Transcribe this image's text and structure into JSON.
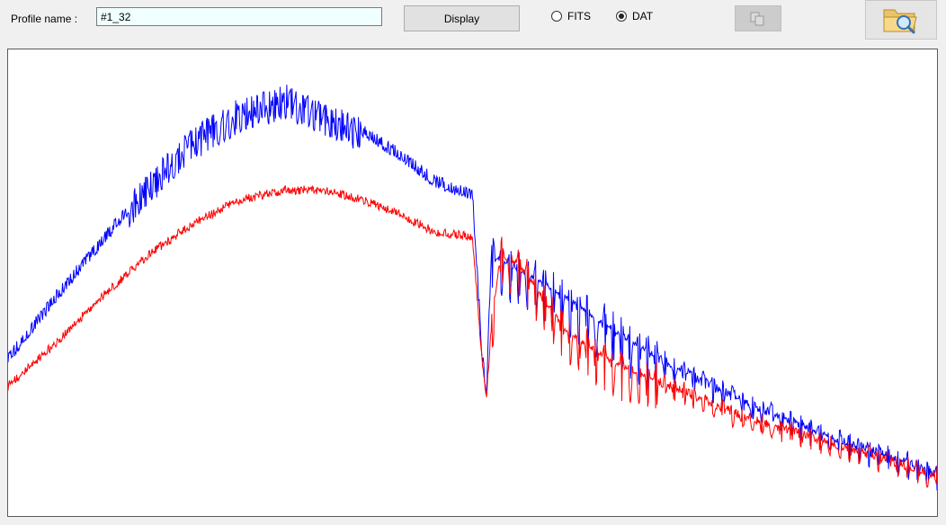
{
  "toolbar": {
    "profile_label": "Profile name :",
    "profile_value": "#1_32",
    "display_label": "Display",
    "format_options": [
      {
        "label": "FITS",
        "selected": false
      },
      {
        "label": "DAT",
        "selected": true
      }
    ],
    "copy_icon": "copy-icon",
    "open_icon": "open-folder-search-icon"
  },
  "colors": {
    "series_observed": "#0000ff",
    "series_reference": "#ff0000",
    "input_bg": "#f0ffff"
  },
  "chart_data": {
    "type": "line",
    "title": "",
    "xlabel": "",
    "ylabel": "",
    "x_axis_labels_visible": false,
    "y_axis_labels_visible": false,
    "grid": false,
    "legend": "none",
    "xlim": [
      0,
      1
    ],
    "ylim": [
      0,
      1
    ],
    "series": [
      {
        "color": "#0000ff",
        "x": [
          0.0,
          0.05,
          0.1,
          0.15,
          0.2,
          0.25,
          0.3,
          0.34,
          0.38,
          0.42,
          0.46,
          0.5,
          0.51,
          0.515,
          0.52,
          0.53,
          0.55,
          0.6,
          0.65,
          0.7,
          0.75,
          0.8,
          0.85,
          0.9,
          0.95,
          1.0
        ],
        "y": [
          0.34,
          0.47,
          0.59,
          0.71,
          0.81,
          0.87,
          0.9,
          0.86,
          0.83,
          0.78,
          0.72,
          0.69,
          0.36,
          0.26,
          0.56,
          0.55,
          0.53,
          0.47,
          0.4,
          0.34,
          0.29,
          0.24,
          0.2,
          0.16,
          0.13,
          0.09
        ]
      },
      {
        "color": "#ff0000",
        "x": [
          0.0,
          0.05,
          0.1,
          0.15,
          0.2,
          0.25,
          0.3,
          0.34,
          0.38,
          0.42,
          0.46,
          0.5,
          0.51,
          0.515,
          0.52,
          0.53,
          0.55,
          0.6,
          0.65,
          0.7,
          0.75,
          0.8,
          0.85,
          0.9,
          0.95,
          1.0
        ],
        "y": [
          0.28,
          0.37,
          0.47,
          0.56,
          0.63,
          0.68,
          0.7,
          0.7,
          0.68,
          0.65,
          0.61,
          0.6,
          0.34,
          0.26,
          0.4,
          0.56,
          0.54,
          0.4,
          0.33,
          0.29,
          0.25,
          0.21,
          0.18,
          0.15,
          0.12,
          0.09
        ]
      }
    ]
  }
}
